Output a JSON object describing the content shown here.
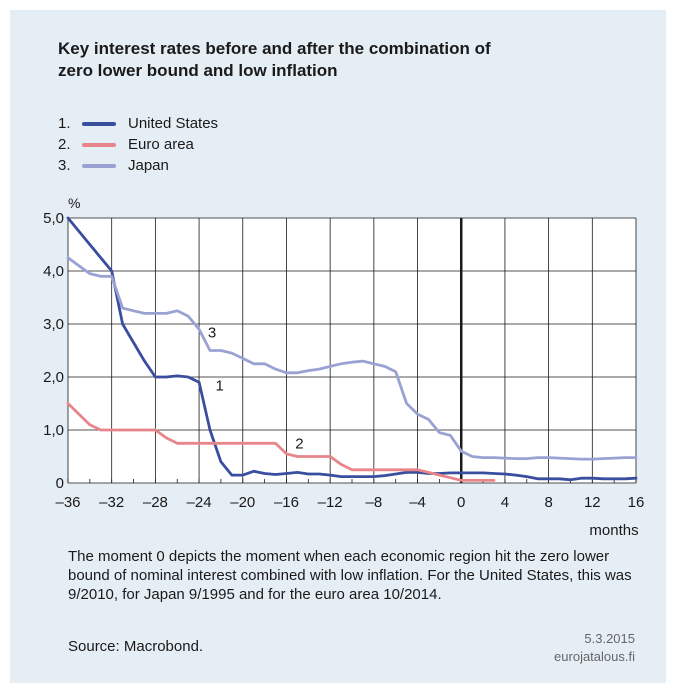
{
  "title_line1": "Key interest rates before and after the combination of",
  "title_line2": "zero lower bound and low inflation",
  "colors": {
    "us": "#3a4ea0",
    "euro": "#e8858a",
    "japan": "#9aa2d4",
    "background": "#e6eef5"
  },
  "legend": [
    {
      "num": "1.",
      "label": "United States",
      "color": "#3a4ea0"
    },
    {
      "num": "2.",
      "label": "Euro area",
      "color": "#e8858a"
    },
    {
      "num": "3.",
      "label": "Japan",
      "color": "#9aa2d4"
    }
  ],
  "chart_data": {
    "type": "line",
    "ylabel": "%",
    "xlabel": "months",
    "xlim": [
      -36,
      16
    ],
    "ylim": [
      0,
      5
    ],
    "grid": true,
    "x_ticks": [
      -36,
      -32,
      -28,
      -24,
      -20,
      -16,
      -12,
      -8,
      -4,
      0,
      4,
      8,
      12,
      16
    ],
    "x_tick_labels": [
      "–36",
      "–32",
      "–28",
      "–24",
      "–20",
      "–16",
      "–12",
      "–8",
      "–4",
      "0",
      "4",
      "8",
      "12",
      "16"
    ],
    "y_ticks": [
      0,
      1,
      2,
      3,
      4,
      5
    ],
    "y_tick_labels": [
      "0",
      "1,0",
      "2,0",
      "3,0",
      "4,0",
      "5,0"
    ],
    "vertical_marker": 0,
    "series": [
      {
        "name": "United States",
        "label": "1",
        "x": [
          -36,
          -35,
          -34,
          -33,
          -32,
          -31,
          -30,
          -29,
          -28,
          -27,
          -26,
          -25,
          -24,
          -23,
          -22,
          -21,
          -20,
          -19,
          -18,
          -17,
          -16,
          -15,
          -14,
          -13,
          -12,
          -11,
          -10,
          -9,
          -8,
          -7,
          -6,
          -5,
          -4,
          -3,
          -2,
          -1,
          0,
          1,
          2,
          3,
          4,
          5,
          6,
          7,
          8,
          9,
          10,
          11,
          12,
          13,
          14,
          15,
          16
        ],
        "y": [
          5.0,
          4.75,
          4.5,
          4.25,
          4.0,
          3.0,
          2.65,
          2.3,
          2.0,
          2.0,
          2.02,
          2.0,
          1.9,
          1.0,
          0.4,
          0.15,
          0.15,
          0.22,
          0.18,
          0.16,
          0.18,
          0.2,
          0.17,
          0.17,
          0.15,
          0.12,
          0.12,
          0.12,
          0.12,
          0.14,
          0.17,
          0.2,
          0.2,
          0.18,
          0.18,
          0.19,
          0.19,
          0.19,
          0.19,
          0.18,
          0.17,
          0.15,
          0.12,
          0.08,
          0.08,
          0.08,
          0.06,
          0.09,
          0.09,
          0.08,
          0.08,
          0.08,
          0.09
        ],
        "color": "#3a4ea0"
      },
      {
        "name": "Euro area",
        "label": "2",
        "x": [
          -36,
          -35,
          -34,
          -33,
          -32,
          -31,
          -30,
          -29,
          -28,
          -27,
          -26,
          -25,
          -24,
          -23,
          -22,
          -21,
          -20,
          -19,
          -18,
          -17,
          -16,
          -15,
          -14,
          -13,
          -12,
          -11,
          -10,
          -9,
          -8,
          -7,
          -6,
          -5,
          -4,
          -3,
          -2,
          -1,
          0,
          1,
          2,
          3
        ],
        "y": [
          1.5,
          1.3,
          1.1,
          1.0,
          1.0,
          1.0,
          1.0,
          1.0,
          1.0,
          0.85,
          0.75,
          0.75,
          0.75,
          0.75,
          0.75,
          0.75,
          0.75,
          0.75,
          0.75,
          0.75,
          0.55,
          0.5,
          0.5,
          0.5,
          0.5,
          0.35,
          0.25,
          0.25,
          0.25,
          0.25,
          0.25,
          0.25,
          0.25,
          0.2,
          0.15,
          0.1,
          0.05,
          0.05,
          0.05,
          0.05
        ],
        "color": "#e8858a"
      },
      {
        "name": "Japan",
        "label": "3",
        "x": [
          -36,
          -35,
          -34,
          -33,
          -32,
          -31,
          -30,
          -29,
          -28,
          -27,
          -26,
          -25,
          -24,
          -23,
          -22,
          -21,
          -20,
          -19,
          -18,
          -17,
          -16,
          -15,
          -14,
          -13,
          -12,
          -11,
          -10,
          -9,
          -8,
          -7,
          -6,
          -5,
          -4,
          -3,
          -2,
          -1,
          0,
          1,
          2,
          3,
          4,
          5,
          6,
          7,
          8,
          9,
          10,
          11,
          12,
          13,
          14,
          15,
          16
        ],
        "y": [
          4.25,
          4.1,
          3.95,
          3.9,
          3.9,
          3.3,
          3.25,
          3.2,
          3.2,
          3.2,
          3.25,
          3.15,
          2.9,
          2.5,
          2.5,
          2.45,
          2.35,
          2.25,
          2.25,
          2.15,
          2.08,
          2.08,
          2.12,
          2.15,
          2.2,
          2.25,
          2.28,
          2.3,
          2.25,
          2.2,
          2.1,
          1.5,
          1.3,
          1.2,
          0.95,
          0.9,
          0.6,
          0.5,
          0.48,
          0.48,
          0.47,
          0.46,
          0.46,
          0.48,
          0.48,
          0.47,
          0.46,
          0.45,
          0.45,
          0.46,
          0.47,
          0.48,
          0.48
        ],
        "color": "#9aa2d4"
      }
    ]
  },
  "note": "The moment 0 depicts the moment when each economic region hit the zero lower bound of nominal interest combined with low inflation. For the United States, this was 9/2010, for Japan 9/1995 and for the euro area 10/2014.",
  "source": "Source: Macrobond.",
  "date": "5.3.2015",
  "site": "eurojatalous.fi"
}
